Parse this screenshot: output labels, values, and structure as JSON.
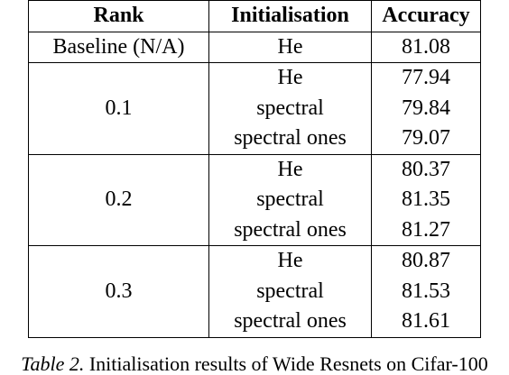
{
  "table": {
    "headers": [
      "Rank",
      "Initialisation",
      "Accuracy"
    ],
    "baseline": {
      "rank": "Baseline (N/A)",
      "init": "He",
      "accuracy": "81.08"
    },
    "groups": [
      {
        "rank": "0.1",
        "rows": [
          {
            "init": "He",
            "accuracy": "77.94"
          },
          {
            "init": "spectral",
            "accuracy": "79.84"
          },
          {
            "init": "spectral ones",
            "accuracy": "79.07"
          }
        ]
      },
      {
        "rank": "0.2",
        "rows": [
          {
            "init": "He",
            "accuracy": "80.37"
          },
          {
            "init": "spectral",
            "accuracy": "81.35"
          },
          {
            "init": "spectral ones",
            "accuracy": "81.27"
          }
        ]
      },
      {
        "rank": "0.3",
        "rows": [
          {
            "init": "He",
            "accuracy": "80.87"
          },
          {
            "init": "spectral",
            "accuracy": "81.53"
          },
          {
            "init": "spectral ones",
            "accuracy": "81.61"
          }
        ]
      }
    ]
  },
  "caption": {
    "label": "Table 2.",
    "text": "Initialisation results of Wide Resnets on Cifar-100"
  }
}
